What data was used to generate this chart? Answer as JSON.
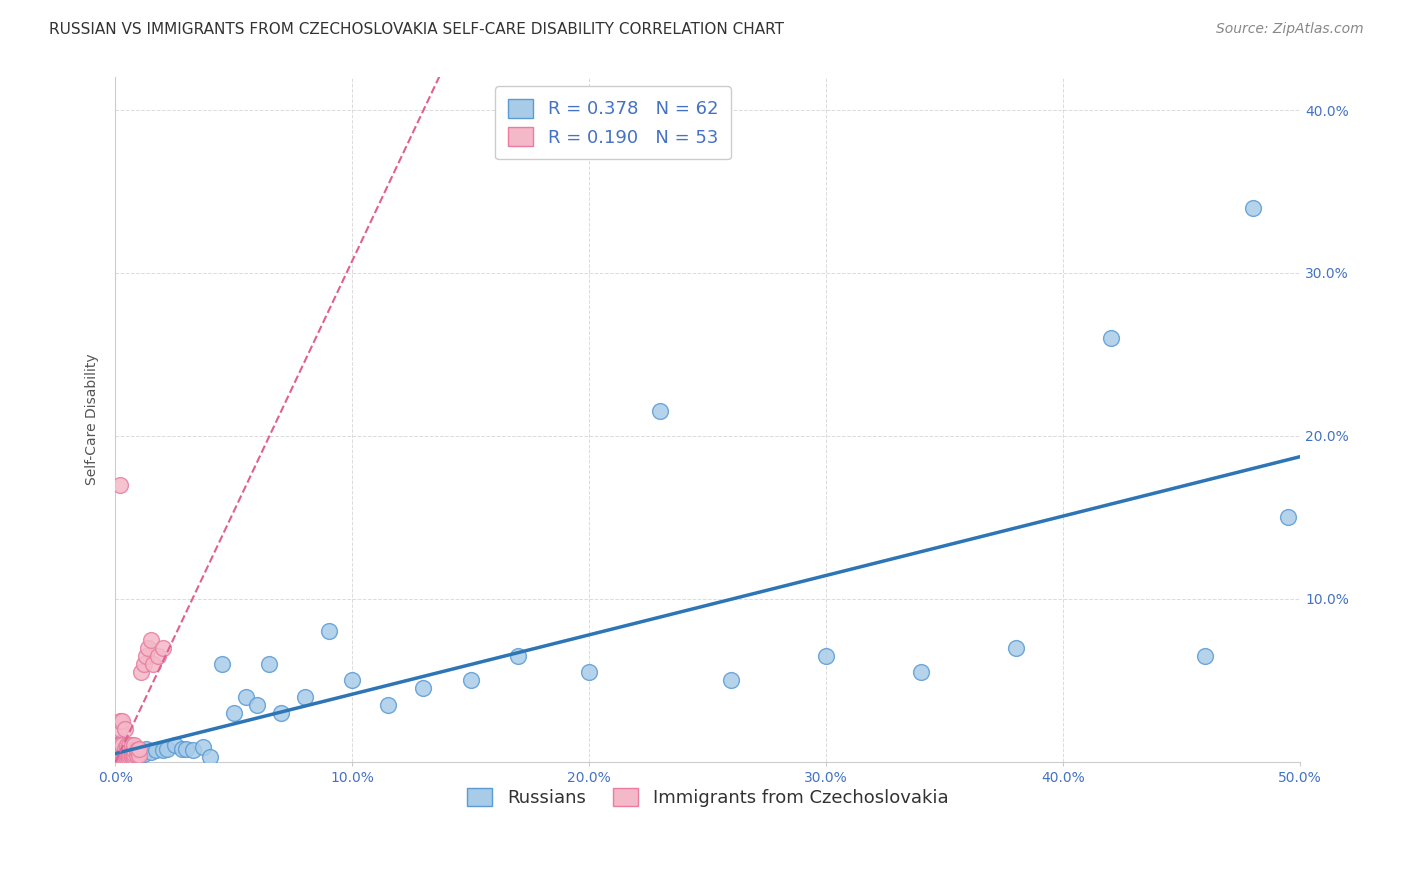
{
  "title": "RUSSIAN VS IMMIGRANTS FROM CZECHOSLOVAKIA SELF-CARE DISABILITY CORRELATION CHART",
  "source": "Source: ZipAtlas.com",
  "ylabel": "Self-Care Disability",
  "xlim": [
    0.0,
    0.5
  ],
  "ylim": [
    0.0,
    0.42
  ],
  "xticks": [
    0.0,
    0.1,
    0.2,
    0.3,
    0.4,
    0.5
  ],
  "yticks": [
    0.0,
    0.1,
    0.2,
    0.3,
    0.4
  ],
  "xtick_labels": [
    "0.0%",
    "10.0%",
    "20.0%",
    "30.0%",
    "40.0%",
    "50.0%"
  ],
  "ytick_labels_right": [
    "",
    "10.0%",
    "20.0%",
    "30.0%",
    "40.0%"
  ],
  "background_color": "#ffffff",
  "grid_color": "#cccccc",
  "blue_color": "#a8cce8",
  "pink_color": "#f4b8c8",
  "blue_edge_color": "#5b9bd5",
  "pink_edge_color": "#e87da0",
  "blue_line_color": "#2e75b6",
  "pink_line_color": "#e06090",
  "R_blue": 0.378,
  "N_blue": 62,
  "R_pink": 0.19,
  "N_pink": 53,
  "legend_label_blue": "Russians",
  "legend_label_pink": "Immigrants from Czechoslovakia",
  "blue_x": [
    0.001,
    0.001,
    0.001,
    0.002,
    0.002,
    0.002,
    0.003,
    0.003,
    0.003,
    0.003,
    0.004,
    0.004,
    0.004,
    0.005,
    0.005,
    0.005,
    0.006,
    0.006,
    0.006,
    0.007,
    0.007,
    0.008,
    0.008,
    0.009,
    0.009,
    0.01,
    0.01,
    0.012,
    0.013,
    0.015,
    0.017,
    0.02,
    0.022,
    0.025,
    0.028,
    0.03,
    0.033,
    0.037,
    0.04,
    0.045,
    0.05,
    0.055,
    0.06,
    0.065,
    0.07,
    0.08,
    0.09,
    0.1,
    0.115,
    0.13,
    0.15,
    0.17,
    0.2,
    0.23,
    0.26,
    0.3,
    0.34,
    0.38,
    0.42,
    0.46,
    0.48,
    0.495
  ],
  "blue_y": [
    0.003,
    0.006,
    0.009,
    0.003,
    0.007,
    0.011,
    0.002,
    0.005,
    0.008,
    0.012,
    0.003,
    0.007,
    0.01,
    0.003,
    0.006,
    0.01,
    0.003,
    0.006,
    0.009,
    0.004,
    0.008,
    0.004,
    0.007,
    0.003,
    0.006,
    0.003,
    0.007,
    0.005,
    0.008,
    0.006,
    0.007,
    0.007,
    0.008,
    0.01,
    0.008,
    0.008,
    0.007,
    0.009,
    0.003,
    0.06,
    0.03,
    0.04,
    0.035,
    0.06,
    0.03,
    0.04,
    0.08,
    0.05,
    0.035,
    0.045,
    0.05,
    0.065,
    0.055,
    0.215,
    0.05,
    0.065,
    0.055,
    0.07,
    0.26,
    0.065,
    0.34,
    0.15
  ],
  "pink_x": [
    0.001,
    0.001,
    0.001,
    0.001,
    0.002,
    0.002,
    0.002,
    0.002,
    0.002,
    0.002,
    0.002,
    0.003,
    0.003,
    0.003,
    0.003,
    0.003,
    0.003,
    0.004,
    0.004,
    0.004,
    0.004,
    0.004,
    0.005,
    0.005,
    0.005,
    0.005,
    0.005,
    0.006,
    0.006,
    0.006,
    0.006,
    0.006,
    0.007,
    0.007,
    0.007,
    0.007,
    0.008,
    0.008,
    0.008,
    0.008,
    0.009,
    0.009,
    0.01,
    0.01,
    0.011,
    0.012,
    0.013,
    0.014,
    0.015,
    0.016,
    0.018,
    0.02,
    0.002
  ],
  "pink_y": [
    0.002,
    0.003,
    0.005,
    0.008,
    0.002,
    0.003,
    0.005,
    0.007,
    0.01,
    0.02,
    0.025,
    0.002,
    0.003,
    0.005,
    0.007,
    0.01,
    0.025,
    0.002,
    0.004,
    0.006,
    0.008,
    0.02,
    0.002,
    0.004,
    0.006,
    0.008,
    0.01,
    0.002,
    0.004,
    0.006,
    0.008,
    0.01,
    0.003,
    0.005,
    0.007,
    0.01,
    0.003,
    0.005,
    0.007,
    0.01,
    0.004,
    0.007,
    0.004,
    0.008,
    0.055,
    0.06,
    0.065,
    0.07,
    0.075,
    0.06,
    0.065,
    0.07,
    0.17
  ],
  "title_fontsize": 11,
  "axis_label_fontsize": 10,
  "tick_fontsize": 10,
  "legend_fontsize": 13,
  "source_fontsize": 10
}
